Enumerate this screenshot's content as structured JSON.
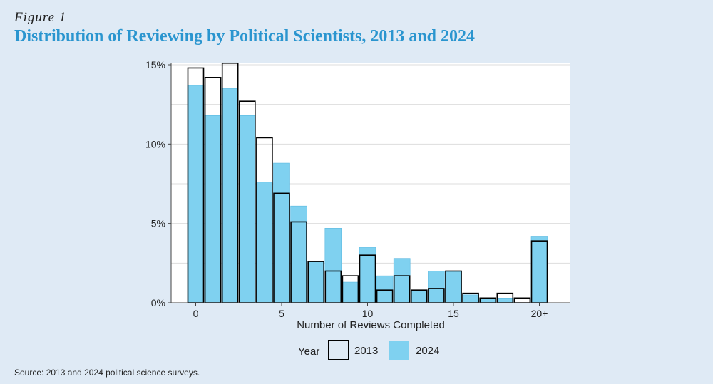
{
  "figure": {
    "label": "Figure 1",
    "title": "Distribution of Reviewing by Political Scientists, 2013 and 2024",
    "source": "Source: 2013 and 2024 political science surveys."
  },
  "colors": {
    "bar_2024": "#7fd1f0",
    "bar_2024_stroke": "#5ab8e0",
    "outline_2013": "#000000",
    "title": "#2a95cf",
    "grid": "#dddddd"
  },
  "chart_data": {
    "type": "bar",
    "title": "Distribution of Reviewing by Political Scientists, 2013 and 2024",
    "xlabel": "Number of Reviews Completed",
    "ylabel": "",
    "ylim": [
      0,
      15
    ],
    "xlim": [
      -0.5,
      20.5
    ],
    "yticks": [
      {
        "value": 0,
        "label": "0%"
      },
      {
        "value": 5,
        "label": "5%"
      },
      {
        "value": 10,
        "label": "10%"
      },
      {
        "value": 15,
        "label": "15%"
      }
    ],
    "xticks": [
      {
        "value": 0,
        "label": "0"
      },
      {
        "value": 5,
        "label": "5"
      },
      {
        "value": 10,
        "label": "10"
      },
      {
        "value": 15,
        "label": "15"
      },
      {
        "value": 20,
        "label": "20+"
      }
    ],
    "categories": [
      0,
      1,
      2,
      3,
      4,
      5,
      6,
      7,
      8,
      9,
      10,
      11,
      12,
      13,
      14,
      15,
      16,
      17,
      18,
      19,
      20
    ],
    "series": [
      {
        "name": "2013",
        "style": "outline",
        "values": [
          14.8,
          14.2,
          15.1,
          12.7,
          10.4,
          6.9,
          5.1,
          2.6,
          2.0,
          1.7,
          3.0,
          0.8,
          1.7,
          0.8,
          0.9,
          2.0,
          0.6,
          0.3,
          0.6,
          0.3,
          3.9
        ]
      },
      {
        "name": "2024",
        "style": "filled",
        "values": [
          13.7,
          11.8,
          13.5,
          11.8,
          7.6,
          8.8,
          6.1,
          2.6,
          4.7,
          1.3,
          3.5,
          1.7,
          2.8,
          0.8,
          2.0,
          2.0,
          0.5,
          0.3,
          0.3,
          0.0,
          4.2
        ]
      }
    ],
    "legend": {
      "title": "Year",
      "position": "bottom-center"
    },
    "grid": true
  }
}
